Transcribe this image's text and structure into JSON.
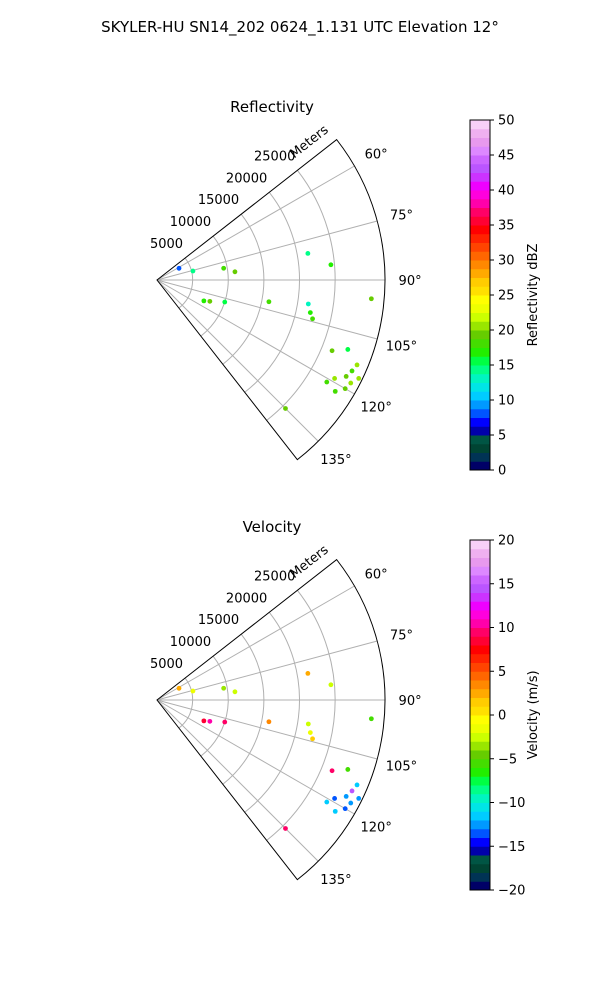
{
  "title": "SKYLER-HU  SN14_202  0624_1.131 UTC Elevation 12°",
  "chart_data": [
    {
      "type": "polar-sector",
      "title": "Reflectivity",
      "radial_label": "Meters",
      "range_rings": [
        "5000",
        "10000",
        "15000",
        "20000",
        "25000"
      ],
      "azimuth_labels": [
        "60°",
        "75°",
        "90°",
        "105°",
        "120°",
        "135°"
      ],
      "azimuth_range": [
        52,
        142
      ],
      "radial_max": 32000,
      "colorbar": {
        "label": "Reflectivity dBZ",
        "range": [
          0,
          50
        ],
        "ticks": [
          "0",
          "5",
          "10",
          "15",
          "20",
          "25",
          "30",
          "35",
          "40",
          "45",
          "50"
        ],
        "colors": [
          "#000066",
          "#003355",
          "#004433",
          "#005544",
          "#0000aa",
          "#0000ff",
          "#0055ff",
          "#0099ff",
          "#00ccff",
          "#00e5e5",
          "#00f5c0",
          "#00ff88",
          "#00ff44",
          "#22ee00",
          "#44dd00",
          "#66cc00",
          "#99e600",
          "#ccff00",
          "#eeff00",
          "#ffff00",
          "#ffe000",
          "#ffcc00",
          "#ffaa00",
          "#ff8800",
          "#ff6600",
          "#ff4400",
          "#ff2200",
          "#ff0000",
          "#ff0033",
          "#ff0066",
          "#ff00aa",
          "#ff00dd",
          "#ee00ff",
          "#cc33ff",
          "#bb55ff",
          "#cc66ff",
          "#dd88ff",
          "#e899ee",
          "#f0b0f0",
          "#f8d0f8"
        ]
      },
      "echoes": [
        {
          "az": 62,
          "r": 3500,
          "dbz": 8
        },
        {
          "az": 76,
          "r": 5200,
          "dbz": 14
        },
        {
          "az": 80,
          "r": 9500,
          "dbz": 18
        },
        {
          "az": 84,
          "r": 11000,
          "dbz": 19
        },
        {
          "az": 80,
          "r": 21500,
          "dbz": 14
        },
        {
          "az": 85,
          "r": 24500,
          "dbz": 17
        },
        {
          "az": 95,
          "r": 30200,
          "dbz": 19
        },
        {
          "az": 101,
          "r": 16000,
          "dbz": 18
        },
        {
          "az": 102,
          "r": 22000,
          "dbz": 17
        },
        {
          "az": 104,
          "r": 22500,
          "dbz": 18
        },
        {
          "az": 99,
          "r": 21500,
          "dbz": 13
        },
        {
          "az": 108,
          "r": 10000,
          "dbz": 16
        },
        {
          "az": 112,
          "r": 8000,
          "dbz": 19
        },
        {
          "az": 114,
          "r": 7200,
          "dbz": 17
        },
        {
          "az": 112,
          "r": 26500,
          "dbz": 19
        },
        {
          "az": 110,
          "r": 28500,
          "dbz": 16
        },
        {
          "az": 113,
          "r": 30500,
          "dbz": 20
        },
        {
          "az": 115,
          "r": 30200,
          "dbz": 18
        },
        {
          "az": 117,
          "r": 29800,
          "dbz": 19
        },
        {
          "az": 119,
          "r": 28500,
          "dbz": 20
        },
        {
          "az": 121,
          "r": 27800,
          "dbz": 18
        },
        {
          "az": 118,
          "r": 30800,
          "dbz": 21
        },
        {
          "az": 120,
          "r": 30500,
          "dbz": 19
        },
        {
          "az": 122,
          "r": 29500,
          "dbz": 18
        },
        {
          "az": 116,
          "r": 31500,
          "dbz": 20
        },
        {
          "az": 135,
          "r": 25500,
          "dbz": 19
        }
      ]
    },
    {
      "type": "polar-sector",
      "title": "Velocity",
      "radial_label": "Meters",
      "range_rings": [
        "5000",
        "10000",
        "15000",
        "20000",
        "25000"
      ],
      "azimuth_labels": [
        "60°",
        "75°",
        "90°",
        "105°",
        "120°",
        "135°"
      ],
      "azimuth_range": [
        52,
        142
      ],
      "radial_max": 32000,
      "colorbar": {
        "label": "Velocity (m/s)",
        "range": [
          -20,
          20
        ],
        "ticks": [
          "−20",
          "−15",
          "−10",
          "−5",
          "0",
          "5",
          "10",
          "15",
          "20"
        ],
        "colors": [
          "#000066",
          "#003355",
          "#004433",
          "#005544",
          "#0000aa",
          "#0000ff",
          "#0055ff",
          "#0099ff",
          "#00ccff",
          "#00e5e5",
          "#00f5c0",
          "#00ff88",
          "#00ff44",
          "#22ee00",
          "#44dd00",
          "#66cc00",
          "#99e600",
          "#ccff00",
          "#eeff00",
          "#ffff00",
          "#ffe000",
          "#ffcc00",
          "#ffaa00",
          "#ff8800",
          "#ff6600",
          "#ff4400",
          "#ff2200",
          "#ff0000",
          "#ff0033",
          "#ff0066",
          "#ff00aa",
          "#ff00dd",
          "#ee00ff",
          "#cc33ff",
          "#bb55ff",
          "#cc66ff",
          "#dd88ff",
          "#e899ee",
          "#f0b0f0",
          "#f8d0f8"
        ]
      },
      "echoes": [
        {
          "az": 62,
          "r": 3500,
          "vel": 2
        },
        {
          "az": 76,
          "r": 5200,
          "vel": -2
        },
        {
          "az": 80,
          "r": 9500,
          "vel": -4
        },
        {
          "az": 84,
          "r": 11000,
          "vel": -3
        },
        {
          "az": 80,
          "r": 21500,
          "vel": 2
        },
        {
          "az": 85,
          "r": 24500,
          "vel": -3
        },
        {
          "az": 95,
          "r": 30200,
          "vel": -6
        },
        {
          "az": 101,
          "r": 16000,
          "vel": 3
        },
        {
          "az": 102,
          "r": 22000,
          "vel": -2
        },
        {
          "az": 104,
          "r": 22500,
          "vel": 1
        },
        {
          "az": 99,
          "r": 21500,
          "vel": -3
        },
        {
          "az": 108,
          "r": 10000,
          "vel": 9
        },
        {
          "az": 112,
          "r": 8000,
          "vel": 10
        },
        {
          "az": 114,
          "r": 7200,
          "vel": 8
        },
        {
          "az": 112,
          "r": 26500,
          "vel": 9
        },
        {
          "az": 110,
          "r": 28500,
          "vel": -6
        },
        {
          "az": 113,
          "r": 30500,
          "vel": -12
        },
        {
          "az": 115,
          "r": 30200,
          "vel": 14
        },
        {
          "az": 117,
          "r": 29800,
          "vel": -13
        },
        {
          "az": 119,
          "r": 28500,
          "vel": -14
        },
        {
          "az": 121,
          "r": 27800,
          "vel": -12
        },
        {
          "az": 118,
          "r": 30800,
          "vel": -13
        },
        {
          "az": 120,
          "r": 30500,
          "vel": -14
        },
        {
          "az": 122,
          "r": 29500,
          "vel": -12
        },
        {
          "az": 116,
          "r": 31500,
          "vel": -13
        },
        {
          "az": 135,
          "r": 25500,
          "vel": 9
        }
      ]
    }
  ]
}
